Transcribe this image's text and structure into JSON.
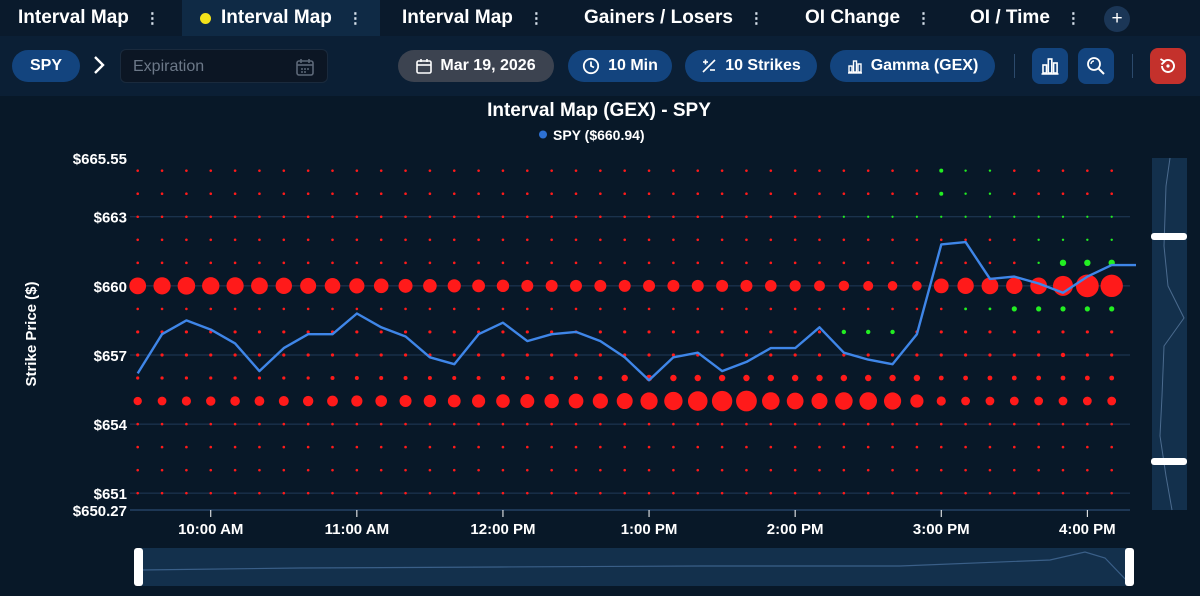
{
  "tabs": [
    {
      "label": "Interval Map",
      "active": false
    },
    {
      "label": "Interval Map",
      "active": true
    },
    {
      "label": "Interval Map",
      "active": false
    },
    {
      "label": "Gainers / Losers",
      "active": false
    },
    {
      "label": "OI Change",
      "active": false
    },
    {
      "label": "OI / Time",
      "active": false
    }
  ],
  "add_tab_label": "+",
  "toolbar": {
    "symbol": "SPY",
    "expiration_placeholder": "Expiration",
    "date": "Mar 19, 2026",
    "interval": "10 Min",
    "strikes": "10 Strikes",
    "metric": "Gamma (GEX)"
  },
  "icons": {
    "chevron": "chevron-right-icon",
    "calendar": "calendar-icon",
    "clock": "clock-icon",
    "strikes": "plus-minus-icon",
    "metric": "bar-chart-icon",
    "chart_type": "bar-chart-icon",
    "zoom": "zoom-icon",
    "reset": "reset-icon"
  },
  "colors": {
    "negative_gamma": "#ff1a1a",
    "positive_gamma": "#22ee22",
    "price_line": "#3f86e8",
    "active_tab_dot": "#f2e21b"
  },
  "chart_data": {
    "type": "scatter",
    "title": "Interval Map (GEX) - SPY",
    "legend": "SPY ($660.94)",
    "ylabel": "Strike Price ($)",
    "yticks": [
      "$665.55",
      "$663",
      "$660",
      "$657",
      "$654",
      "$651",
      "$650.27"
    ],
    "ylim": [
      650.27,
      665.55
    ],
    "xticks": [
      "10:00 AM",
      "11:00 AM",
      "12:00 PM",
      "1:00 PM",
      "2:00 PM",
      "3:00 PM",
      "4:00 PM"
    ],
    "x_start": "9:30 AM",
    "x_step_minutes": 10,
    "strikes": [
      665,
      664,
      663,
      662,
      661,
      660,
      659,
      658,
      657,
      656,
      655,
      654,
      653,
      652,
      651
    ],
    "price_series": {
      "name": "SPY",
      "values": [
        656.2,
        657.9,
        658.5,
        658.1,
        657.5,
        656.3,
        657.3,
        657.9,
        657.9,
        658.8,
        658.2,
        657.8,
        656.9,
        656.6,
        657.9,
        658.4,
        657.6,
        657.9,
        658.0,
        657.6,
        656.9,
        655.9,
        656.9,
        657.1,
        656.3,
        656.7,
        657.3,
        657.3,
        658.2,
        657.1,
        656.8,
        656.6,
        657.9,
        661.8,
        661.9,
        660.3,
        660.4,
        660.1,
        659.7,
        660.4,
        660.9,
        660.9
      ]
    },
    "gex_bubbles": [
      {
        "strike": 660,
        "sign": "negative",
        "sizes": [
          3,
          3,
          3,
          3,
          3,
          3,
          3,
          3,
          3,
          3,
          3,
          3,
          3,
          3,
          3,
          3,
          3,
          3,
          3,
          3,
          3,
          3,
          3,
          3,
          3,
          3,
          3,
          3,
          3,
          3,
          3,
          3,
          3,
          3,
          3,
          3,
          3,
          3,
          3,
          3,
          3
        ]
      },
      {
        "strike": 655,
        "sign": "negative",
        "sizes": [
          3,
          3,
          3,
          3,
          3,
          3,
          3,
          3,
          3,
          3,
          3,
          3,
          3,
          3,
          3,
          3,
          3,
          3,
          3,
          3,
          3,
          3,
          3,
          3,
          3,
          3,
          3,
          3,
          3,
          3,
          3,
          3,
          3,
          3,
          3,
          3,
          3,
          3,
          3,
          3,
          3
        ]
      },
      {
        "strike": 659,
        "sign": "positive",
        "sizes": [
          0,
          0,
          0,
          0,
          0,
          0,
          0,
          0,
          0,
          0,
          0,
          0,
          0,
          0,
          0,
          0,
          0,
          0,
          0,
          0,
          0,
          0,
          0,
          0,
          0,
          0,
          0,
          0,
          0,
          0,
          0,
          0,
          0,
          0,
          0,
          0,
          2,
          2,
          2,
          2,
          2
        ]
      }
    ]
  }
}
